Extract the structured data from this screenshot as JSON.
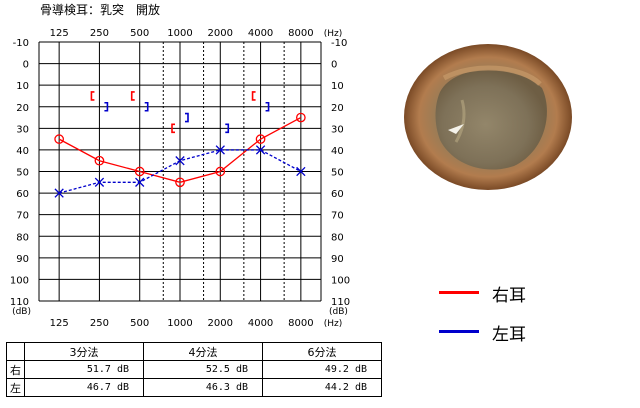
{
  "header": {
    "title": "骨導検耳：乳突　開放"
  },
  "legend": [
    {
      "label": "右耳",
      "color": "#ff0000"
    },
    {
      "label": "左耳",
      "color": "#0000cc"
    }
  ],
  "table": {
    "headers": [
      "3分法",
      "4分法",
      "6分法"
    ],
    "rows": [
      {
        "label": "右",
        "values": [
          "51.7 dB",
          "52.5 dB",
          "49.2 dB"
        ]
      },
      {
        "label": "左",
        "values": [
          "46.7 dB",
          "46.3 dB",
          "44.2 dB"
        ]
      }
    ]
  },
  "chart_data": {
    "type": "line",
    "title": "",
    "x_unit": "(Hz)",
    "y_unit": "(dB)",
    "y_reversed": true,
    "ylim": [
      -10,
      110
    ],
    "yticks": [
      -10,
      0,
      10,
      20,
      30,
      40,
      50,
      60,
      70,
      80,
      90,
      100,
      110
    ],
    "x_tick_labels": [
      "125",
      "250",
      "500",
      "1000",
      "2000",
      "4000",
      "8000"
    ],
    "x": [
      125,
      250,
      500,
      1000,
      2000,
      4000,
      8000
    ],
    "grid": true,
    "series": [
      {
        "name": "右耳",
        "kind": "air",
        "marker": "circle",
        "color": "#ff0000",
        "values": [
          35,
          45,
          50,
          55,
          50,
          35,
          25
        ]
      },
      {
        "name": "左耳",
        "kind": "air",
        "marker": "cross",
        "color": "#0000cc",
        "values": [
          60,
          55,
          55,
          45,
          40,
          40,
          50
        ]
      },
      {
        "name": "右耳",
        "kind": "bone",
        "marker": "bracket-left",
        "color": "#ff0000",
        "x": [
          250,
          500,
          1000,
          4000
        ],
        "values": [
          15,
          15,
          30,
          15
        ]
      },
      {
        "name": "左耳",
        "kind": "bone",
        "marker": "bracket-right",
        "color": "#0000cc",
        "x": [
          250,
          500,
          1000,
          2000,
          4000
        ],
        "values": [
          20,
          20,
          25,
          30,
          20
        ]
      }
    ]
  }
}
